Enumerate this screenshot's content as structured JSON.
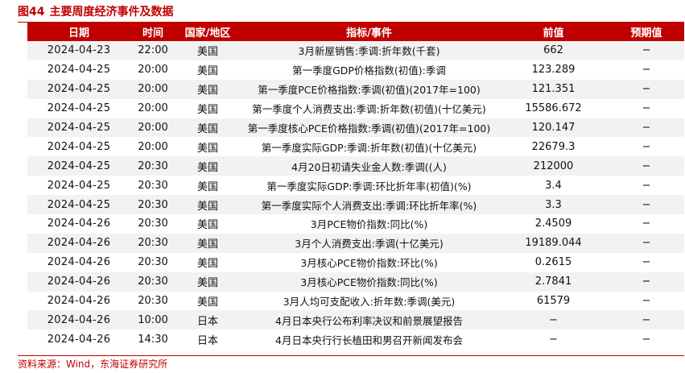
{
  "figure": {
    "label": "图44",
    "title": "主要周度经济事件及数据",
    "source": "资料来源：Wind，东海证券研究所"
  },
  "table": {
    "headers": [
      "日期",
      "时间",
      "国家/地区",
      "指标/事件",
      "前值",
      "预期值"
    ],
    "rows": [
      [
        "2024-04-23",
        "22:00",
        "美国",
        "3月新屋销售:季调:折年数(千套)",
        "662",
        "−"
      ],
      [
        "2024-04-25",
        "20:00",
        "美国",
        "第一季度GDP价格指数(初值):季调",
        "123.289",
        "−"
      ],
      [
        "2024-04-25",
        "20:00",
        "美国",
        "第一季度PCE价格指数:季调(初值)(2017年=100)",
        "121.351",
        "−"
      ],
      [
        "2024-04-25",
        "20:00",
        "美国",
        "第一季度个人消费支出:季调:折年数(初值)(十亿美元)",
        "15586.672",
        "−"
      ],
      [
        "2024-04-25",
        "20:00",
        "美国",
        "第一季度核心PCE价格指数:季调(初值)(2017年=100)",
        "120.147",
        "−"
      ],
      [
        "2024-04-25",
        "20:00",
        "美国",
        "第一季度实际GDP:季调:折年数(初值)(十亿美元)",
        "22679.3",
        "−"
      ],
      [
        "2024-04-25",
        "20:30",
        "美国",
        "4月20日初请失业金人数:季调((人)",
        "212000",
        "−"
      ],
      [
        "2024-04-25",
        "20:30",
        "美国",
        "第一季度实际GDP:季调:环比折年率(初值)(%)",
        "3.4",
        "−"
      ],
      [
        "2024-04-25",
        "20:30",
        "美国",
        "第一季度实际个人消费支出:季调:环比折年率(%)",
        "3.3",
        "−"
      ],
      [
        "2024-04-26",
        "20:30",
        "美国",
        "3月PCE物价指数:同比(%)",
        "2.4509",
        "−"
      ],
      [
        "2024-04-26",
        "20:30",
        "美国",
        "3月个人消费支出:季调(十亿美元)",
        "19189.044",
        "−"
      ],
      [
        "2024-04-26",
        "20:30",
        "美国",
        "3月核心PCE物价指数:环比(%)",
        "0.2615",
        "−"
      ],
      [
        "2024-04-26",
        "20:30",
        "美国",
        "3月核心PCE物价指数:同比(%)",
        "2.7841",
        "−"
      ],
      [
        "2024-04-26",
        "20:30",
        "美国",
        "3月人均可支配收入:折年数:季调(美元)",
        "61579",
        "−"
      ],
      [
        "2024-04-26",
        "10:00",
        "日本",
        "4月日本央行公布利率决议和前景展望报告",
        "−",
        "−"
      ],
      [
        "2024-04-26",
        "14:30",
        "日本",
        "4月日本央行行长植田和男召开新闻发布会",
        "−",
        "−"
      ]
    ]
  }
}
